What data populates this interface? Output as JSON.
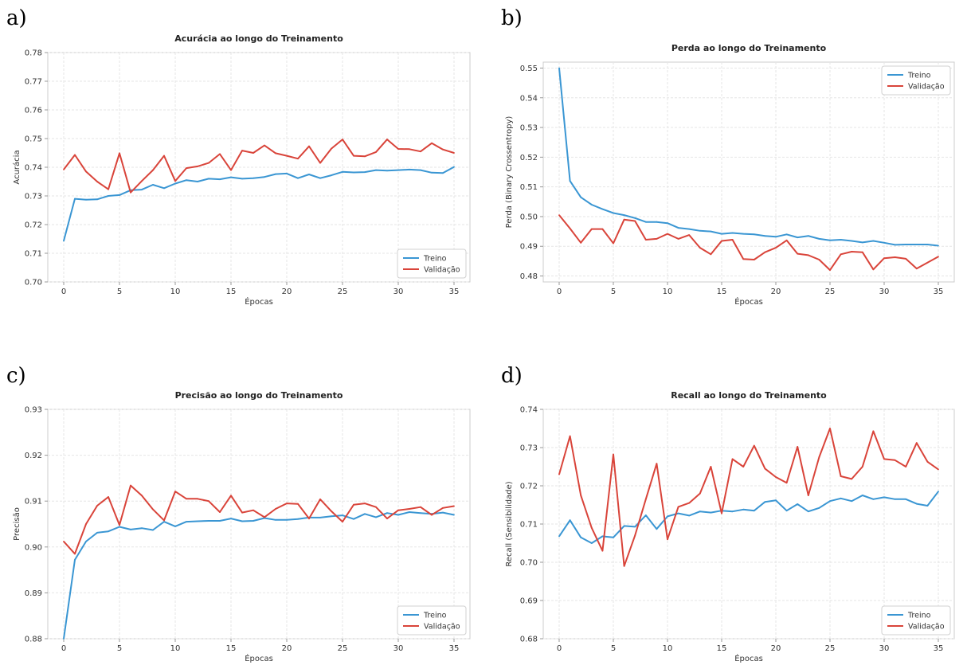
{
  "legend_labels": [
    "Treino",
    "Validação"
  ],
  "colors": {
    "train": "#3a96d3",
    "val": "#d9443a",
    "grid": "#e6e6e6",
    "axis": "#cccccc",
    "text": "#333333"
  },
  "panels": [
    {
      "letter": "a)",
      "title": "Acurácia ao longo do Treinamento"
    },
    {
      "letter": "b)",
      "title": "Perda ao longo do Treinamento"
    },
    {
      "letter": "c)",
      "title": "Precisão ao longo do Treinamento"
    },
    {
      "letter": "d)",
      "title": "Recall ao longo do Treinamento"
    }
  ],
  "chart_data": [
    {
      "type": "line",
      "title": "Acurácia ao longo do Treinamento",
      "xlabel": "Épocas",
      "ylabel": "Acurácia",
      "xlim": [
        0,
        35
      ],
      "ylim": [
        0.7,
        0.78
      ],
      "xticks": [
        0,
        5,
        10,
        15,
        20,
        25,
        30,
        35
      ],
      "yticks": [
        "0.70",
        "0.71",
        "0.72",
        "0.73",
        "0.74",
        "0.75",
        "0.76",
        "0.77",
        "0.78"
      ],
      "grid": true,
      "legend": "bottom-right",
      "x": [
        0,
        1,
        2,
        3,
        4,
        5,
        6,
        7,
        8,
        9,
        10,
        11,
        12,
        13,
        14,
        15,
        16,
        17,
        18,
        19,
        20,
        21,
        22,
        23,
        24,
        25,
        26,
        27,
        28,
        29,
        30,
        31,
        32,
        33,
        34,
        35
      ],
      "series": [
        {
          "name": "Treino",
          "values": [
            0.7143,
            0.729,
            0.7287,
            0.7288,
            0.73,
            0.7303,
            0.732,
            0.7322,
            0.7339,
            0.7327,
            0.7343,
            0.7355,
            0.735,
            0.736,
            0.7358,
            0.7365,
            0.736,
            0.7362,
            0.7366,
            0.7376,
            0.7378,
            0.7362,
            0.7375,
            0.7362,
            0.7372,
            0.7384,
            0.7382,
            0.7383,
            0.739,
            0.7388,
            0.739,
            0.7392,
            0.739,
            0.7381,
            0.738,
            0.7401
          ]
        },
        {
          "name": "Validação",
          "values": [
            0.7392,
            0.7443,
            0.7385,
            0.735,
            0.7323,
            0.7449,
            0.7312,
            0.7352,
            0.739,
            0.744,
            0.7352,
            0.7397,
            0.7403,
            0.7415,
            0.7446,
            0.739,
            0.7458,
            0.745,
            0.7476,
            0.7449,
            0.744,
            0.743,
            0.7473,
            0.7415,
            0.7465,
            0.7497,
            0.744,
            0.7438,
            0.7453,
            0.7497,
            0.7464,
            0.7463,
            0.7455,
            0.7484,
            0.7462,
            0.745
          ]
        }
      ]
    },
    {
      "type": "line",
      "title": "Perda ao longo do Treinamento",
      "xlabel": "Épocas",
      "ylabel": "Perda (Binary Crossentropy)",
      "xlim": [
        0,
        35
      ],
      "ylim": [
        0.478,
        0.552
      ],
      "xticks": [
        0,
        5,
        10,
        15,
        20,
        25,
        30,
        35
      ],
      "yticks": [
        "0.48",
        "0.49",
        "0.50",
        "0.51",
        "0.52",
        "0.53",
        "0.54",
        "0.55"
      ],
      "grid": true,
      "legend": "top-right",
      "x": [
        0,
        1,
        2,
        3,
        4,
        5,
        6,
        7,
        8,
        9,
        10,
        11,
        12,
        13,
        14,
        15,
        16,
        17,
        18,
        19,
        20,
        21,
        22,
        23,
        24,
        25,
        26,
        27,
        28,
        29,
        30,
        31,
        32,
        33,
        34,
        35
      ],
      "series": [
        {
          "name": "Treino",
          "values": [
            0.55,
            0.512,
            0.5065,
            0.504,
            0.5025,
            0.5012,
            0.5005,
            0.4995,
            0.4982,
            0.4982,
            0.4978,
            0.4962,
            0.4958,
            0.4952,
            0.495,
            0.4942,
            0.4945,
            0.4942,
            0.494,
            0.4935,
            0.4932,
            0.494,
            0.493,
            0.4935,
            0.4925,
            0.492,
            0.4922,
            0.4918,
            0.4913,
            0.4918,
            0.4912,
            0.4905,
            0.4906,
            0.4906,
            0.4906,
            0.4902
          ]
        },
        {
          "name": "Validação",
          "values": [
            0.5005,
            0.496,
            0.4912,
            0.4958,
            0.4958,
            0.491,
            0.499,
            0.4985,
            0.4922,
            0.4925,
            0.4942,
            0.4925,
            0.4938,
            0.4895,
            0.4873,
            0.4918,
            0.4922,
            0.4857,
            0.4855,
            0.488,
            0.4895,
            0.492,
            0.4875,
            0.487,
            0.4855,
            0.482,
            0.4873,
            0.4882,
            0.488,
            0.4822,
            0.486,
            0.4863,
            0.4858,
            0.4825,
            0.4845,
            0.4865
          ]
        }
      ]
    },
    {
      "type": "line",
      "title": "Precisão ao longo do Treinamento",
      "xlabel": "Épocas",
      "ylabel": "Precisão",
      "xlim": [
        0,
        35
      ],
      "ylim": [
        0.88,
        0.93
      ],
      "xticks": [
        0,
        5,
        10,
        15,
        20,
        25,
        30,
        35
      ],
      "yticks": [
        "0.88",
        "0.89",
        "0.90",
        "0.91",
        "0.92",
        "0.93"
      ],
      "grid": true,
      "legend": "bottom-right",
      "x": [
        0,
        1,
        2,
        3,
        4,
        5,
        6,
        7,
        8,
        9,
        10,
        11,
        12,
        13,
        14,
        15,
        16,
        17,
        18,
        19,
        20,
        21,
        22,
        23,
        24,
        25,
        26,
        27,
        28,
        29,
        30,
        31,
        32,
        33,
        34,
        35
      ],
      "series": [
        {
          "name": "Treino",
          "values": [
            0.88,
            0.8972,
            0.9012,
            0.9031,
            0.9034,
            0.9044,
            0.9038,
            0.9041,
            0.9037,
            0.9055,
            0.9045,
            0.9055,
            0.9056,
            0.9057,
            0.9057,
            0.9062,
            0.9056,
            0.9057,
            0.9063,
            0.9059,
            0.9059,
            0.9061,
            0.9064,
            0.9064,
            0.9067,
            0.9069,
            0.9061,
            0.9072,
            0.9065,
            0.9074,
            0.907,
            0.9076,
            0.9074,
            0.9072,
            0.9075,
            0.907
          ]
        },
        {
          "name": "Validação",
          "values": [
            0.9012,
            0.8985,
            0.905,
            0.909,
            0.9109,
            0.9048,
            0.9134,
            0.9112,
            0.9082,
            0.9058,
            0.9121,
            0.9105,
            0.9105,
            0.91,
            0.9076,
            0.9112,
            0.9075,
            0.908,
            0.9065,
            0.9083,
            0.9095,
            0.9094,
            0.9062,
            0.9104,
            0.9078,
            0.9055,
            0.9092,
            0.9095,
            0.9087,
            0.9062,
            0.908,
            0.9083,
            0.9087,
            0.907,
            0.9085,
            0.9089
          ]
        }
      ]
    },
    {
      "type": "line",
      "title": "Recall ao longo do Treinamento",
      "xlabel": "Épocas",
      "ylabel": "Recall (Sensibilidade)",
      "xlim": [
        0,
        35
      ],
      "ylim": [
        0.68,
        0.74
      ],
      "xticks": [
        0,
        5,
        10,
        15,
        20,
        25,
        30,
        35
      ],
      "yticks": [
        "0.68",
        "0.69",
        "0.70",
        "0.71",
        "0.72",
        "0.73",
        "0.74"
      ],
      "grid": true,
      "legend": "bottom-right",
      "x": [
        0,
        1,
        2,
        3,
        4,
        5,
        6,
        7,
        8,
        9,
        10,
        11,
        12,
        13,
        14,
        15,
        16,
        17,
        18,
        19,
        20,
        21,
        22,
        23,
        24,
        25,
        26,
        27,
        28,
        29,
        30,
        31,
        32,
        33,
        34,
        35
      ],
      "series": [
        {
          "name": "Treino",
          "values": [
            0.7068,
            0.711,
            0.7065,
            0.705,
            0.7068,
            0.7065,
            0.7095,
            0.7093,
            0.7123,
            0.7087,
            0.712,
            0.7128,
            0.7122,
            0.7133,
            0.713,
            0.7135,
            0.7133,
            0.7138,
            0.7135,
            0.7158,
            0.7162,
            0.7135,
            0.7152,
            0.7133,
            0.7142,
            0.716,
            0.7167,
            0.716,
            0.7175,
            0.7165,
            0.717,
            0.7165,
            0.7165,
            0.7153,
            0.7148,
            0.7185
          ]
        },
        {
          "name": "Validação",
          "values": [
            0.723,
            0.733,
            0.7175,
            0.709,
            0.703,
            0.7282,
            0.699,
            0.707,
            0.7165,
            0.7258,
            0.706,
            0.7145,
            0.7155,
            0.718,
            0.725,
            0.7128,
            0.727,
            0.725,
            0.7305,
            0.7245,
            0.7223,
            0.7208,
            0.7302,
            0.7175,
            0.7275,
            0.735,
            0.7225,
            0.7218,
            0.725,
            0.7343,
            0.727,
            0.7267,
            0.725,
            0.7312,
            0.7263,
            0.7243
          ]
        }
      ]
    }
  ]
}
